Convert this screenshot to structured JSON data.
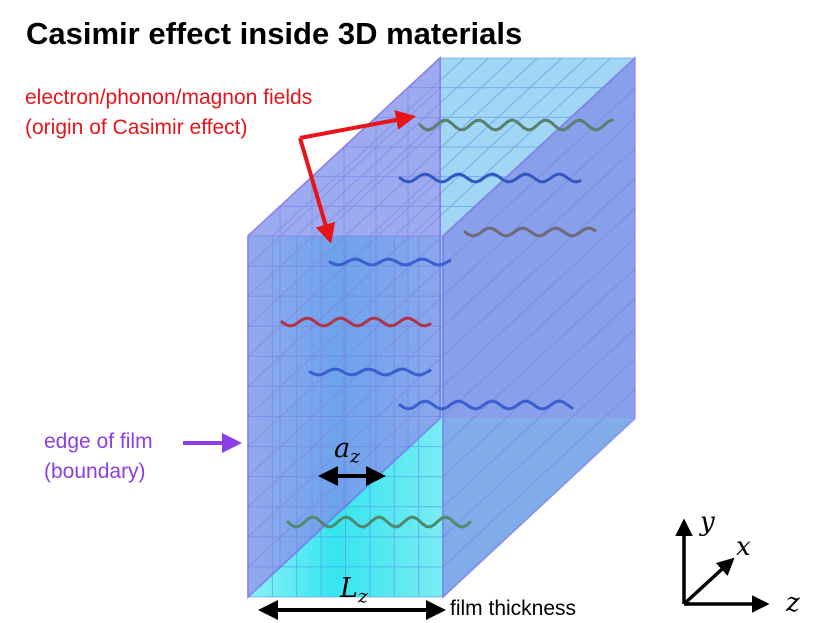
{
  "title": "Casimir effect inside 3D materials",
  "labels": {
    "fields_line1": "electron/phonon/magnon fields",
    "fields_line2": "(origin of Casimir effect)",
    "edge_line1": "edge of film",
    "edge_line2": "(boundary)",
    "film_thickness": "film thickness"
  },
  "math": {
    "a": "a",
    "a_sub": "z",
    "L": "L",
    "L_sub": "z",
    "axis_y": "y",
    "axis_x": "x",
    "axis_z": "z"
  },
  "colors": {
    "red_label": "#e8141a",
    "purple_label": "#8a3fe6",
    "cyan_block": "#33e6f0",
    "purple_plate": "#9b6fe8"
  }
}
